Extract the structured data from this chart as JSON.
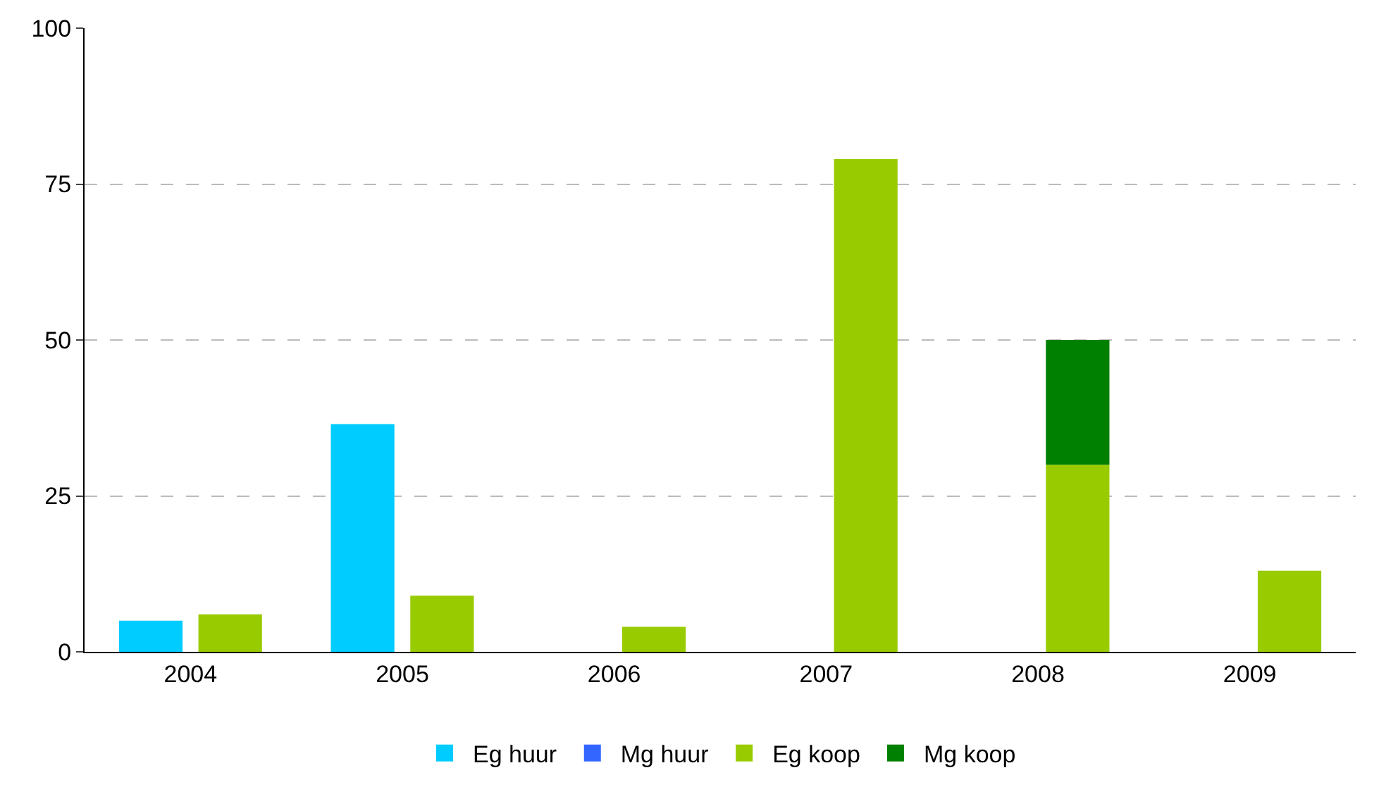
{
  "chart_data": {
    "type": "bar",
    "categories": [
      "2004",
      "2005",
      "2006",
      "2007",
      "2008",
      "2009"
    ],
    "series": [
      {
        "name": "Eg huur",
        "color": "#00ccff",
        "values": [
          5,
          36.5,
          null,
          null,
          null,
          null
        ]
      },
      {
        "name": "Mg huur",
        "color": "#3366ff",
        "values": [
          null,
          null,
          null,
          null,
          null,
          null
        ]
      },
      {
        "name": "Eg koop",
        "color": "#99cc00",
        "values": [
          6,
          9,
          4,
          79,
          30,
          13
        ]
      },
      {
        "name": "Mg koop",
        "color": "#008000",
        "base": [
          null,
          null,
          null,
          null,
          30,
          null
        ],
        "values": [
          null,
          null,
          null,
          null,
          20,
          null
        ]
      }
    ],
    "ylim": [
      0,
      100
    ],
    "yticks": [
      0,
      25,
      50,
      75,
      100
    ],
    "grid": "y",
    "legend": "bottom"
  }
}
